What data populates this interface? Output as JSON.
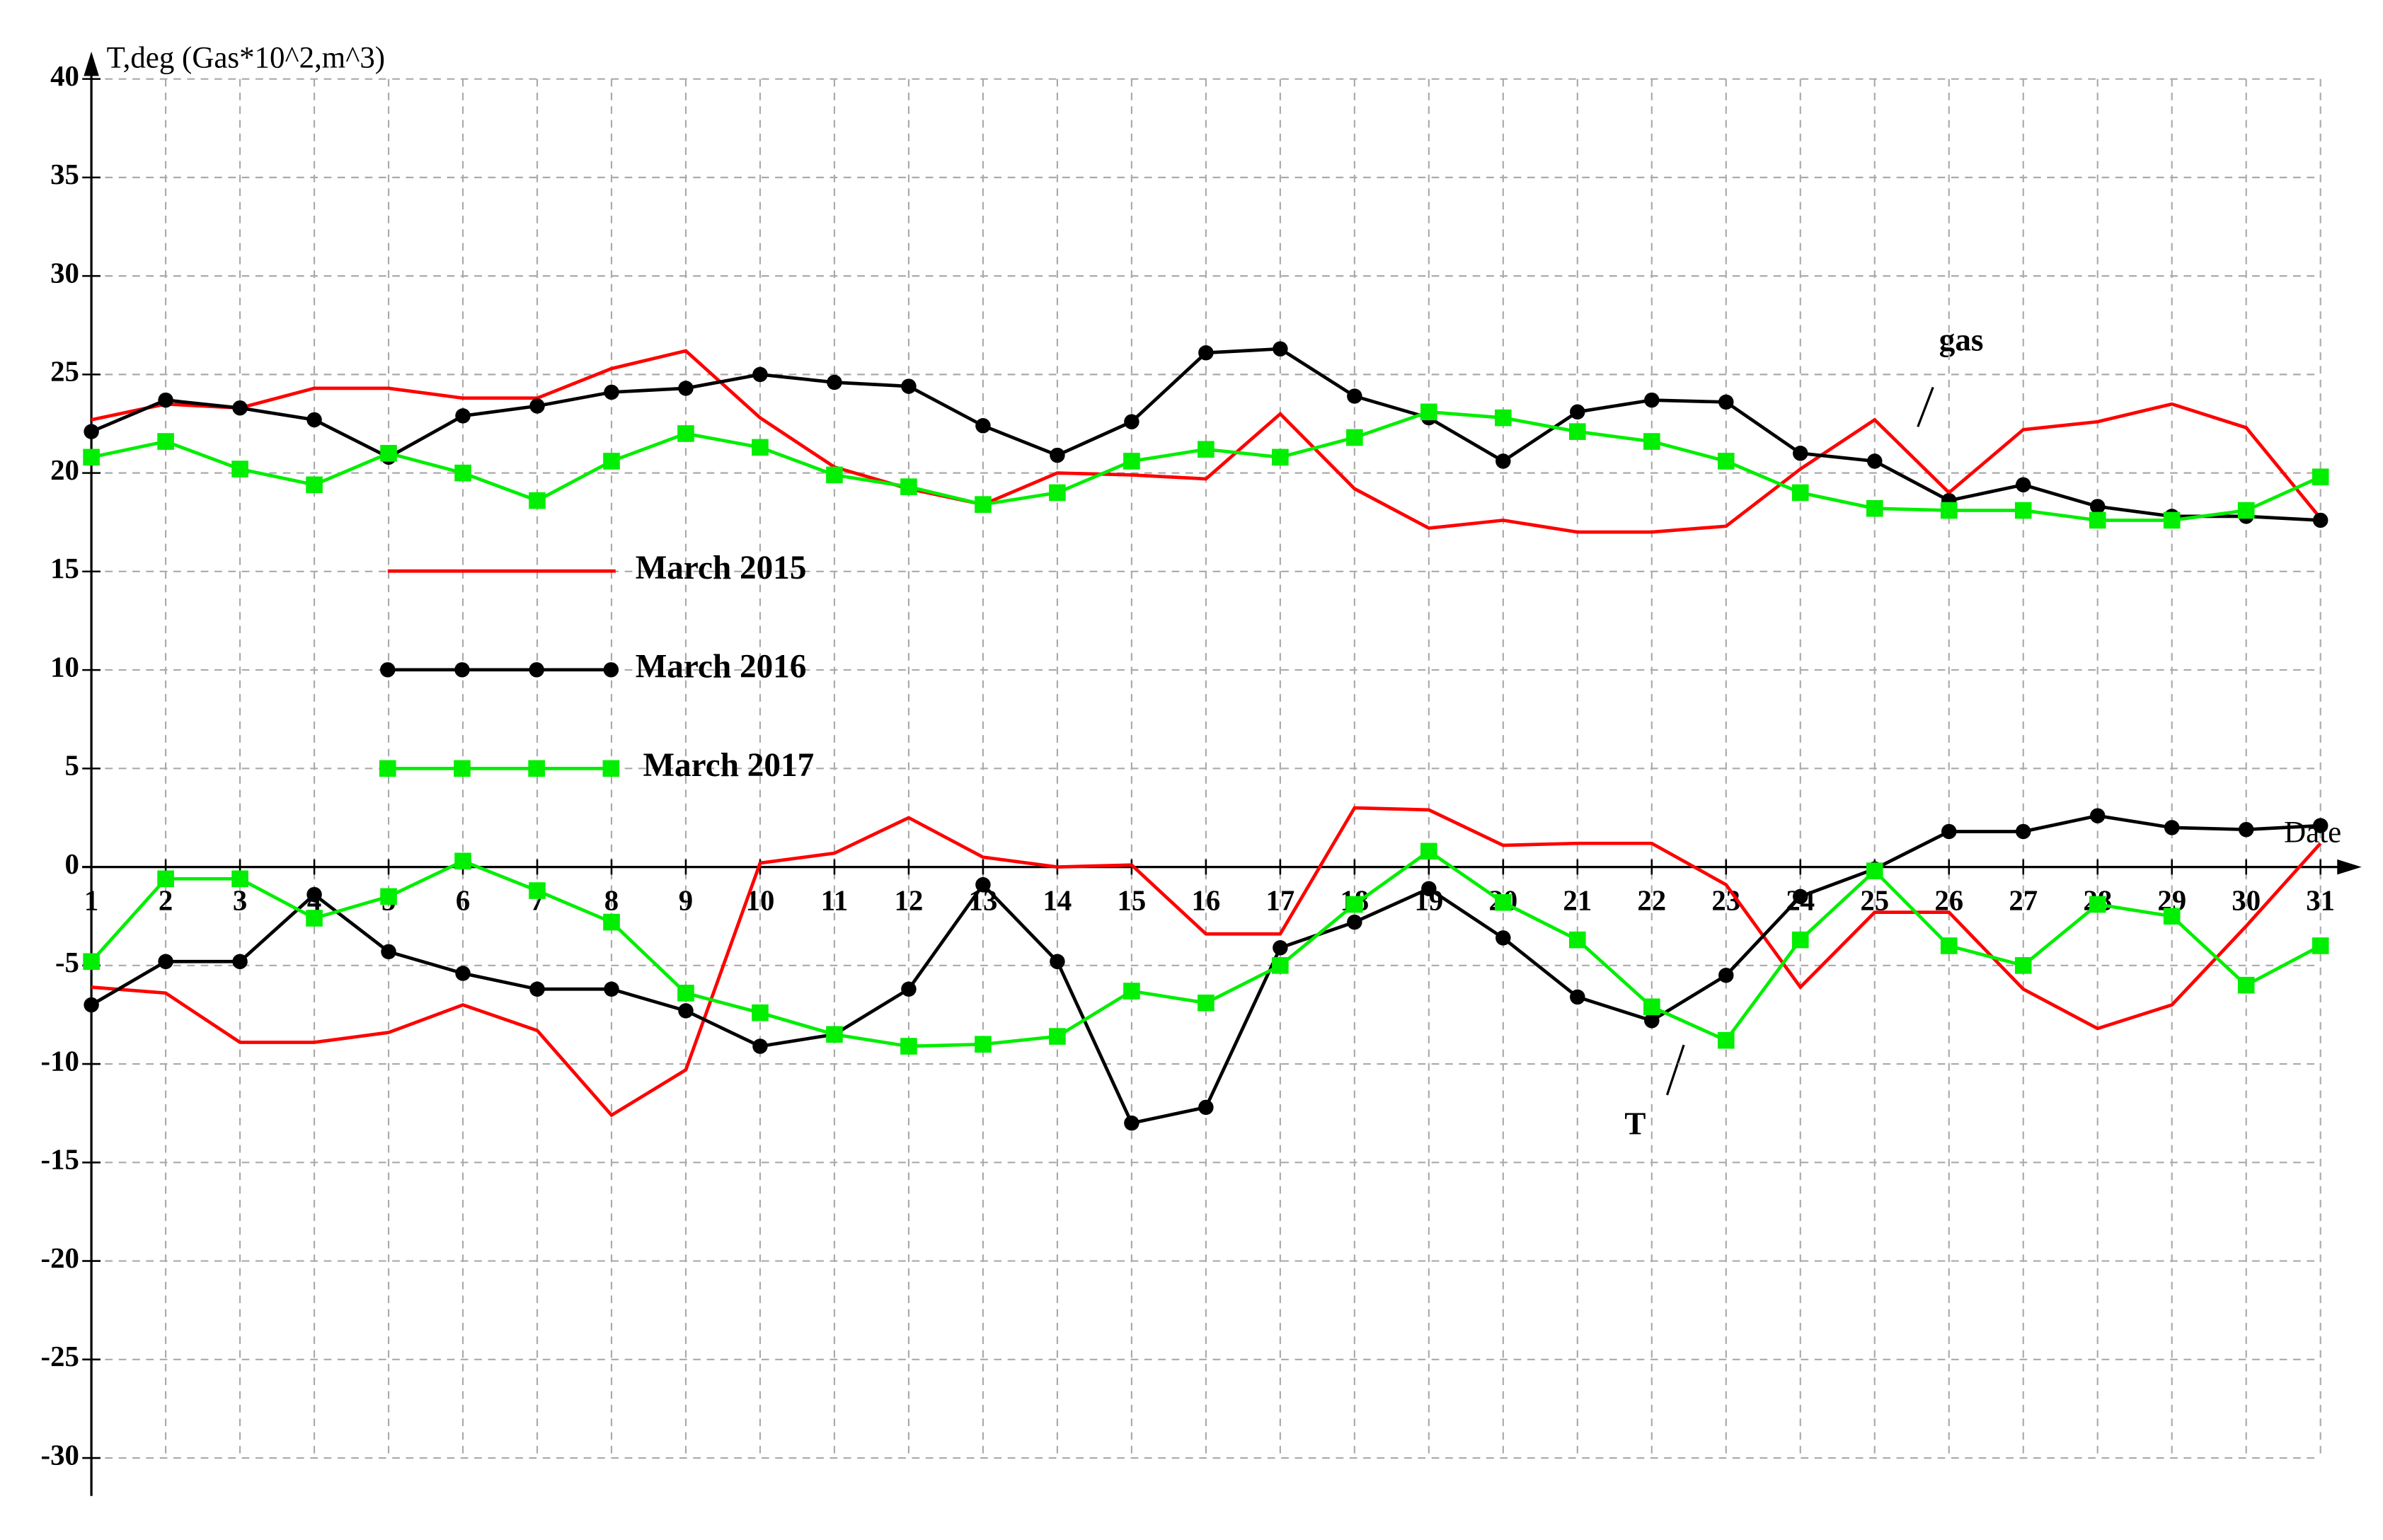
{
  "chart_data": {
    "type": "line",
    "y_label": "T,deg (Gas*10^2,m^3)",
    "x_label": "Date",
    "annotations": [
      "gas",
      "T"
    ],
    "x": [
      1,
      2,
      3,
      4,
      5,
      6,
      7,
      8,
      9,
      10,
      11,
      12,
      13,
      14,
      15,
      16,
      17,
      18,
      19,
      20,
      21,
      22,
      23,
      24,
      25,
      26,
      27,
      28,
      29,
      30,
      31
    ],
    "xlim": [
      1,
      31
    ],
    "xticks": [
      1,
      2,
      3,
      4,
      5,
      6,
      7,
      8,
      9,
      10,
      11,
      12,
      13,
      14,
      15,
      16,
      17,
      18,
      19,
      20,
      21,
      22,
      23,
      24,
      25,
      26,
      27,
      28,
      29,
      30,
      31
    ],
    "ylim": [
      -30,
      40
    ],
    "yticks": [
      -30,
      -25,
      -20,
      -15,
      -10,
      -5,
      0,
      5,
      10,
      15,
      20,
      25,
      30,
      35,
      40
    ],
    "grid": true,
    "legend": "left",
    "series": [
      {
        "name": "March 2015",
        "color": "#ff0000",
        "marker": "none",
        "gas": [
          22.7,
          23.5,
          23.3,
          24.3,
          24.3,
          23.8,
          23.8,
          25.3,
          26.2,
          22.8,
          20.3,
          19.2,
          18.4,
          20.0,
          19.9,
          19.7,
          23.0,
          19.2,
          17.2,
          17.6,
          17.0,
          17.0,
          17.3,
          20.2,
          22.7,
          19.0,
          22.2,
          22.6,
          23.5,
          22.3,
          17.7
        ],
        "temperature": [
          -6.1,
          -6.4,
          -8.9,
          -8.9,
          -8.4,
          -7.0,
          -8.3,
          -12.6,
          -10.3,
          0.2,
          0.7,
          2.5,
          0.5,
          0.0,
          0.1,
          -3.4,
          -3.4,
          3.0,
          2.9,
          1.1,
          1.2,
          1.2,
          -0.9,
          -6.1,
          -2.3,
          -2.3,
          -6.2,
          -8.2,
          -7.0,
          -3.0,
          1.2
        ]
      },
      {
        "name": "March 2016",
        "color": "#000000",
        "marker": "circle",
        "gas": [
          22.1,
          23.7,
          23.3,
          22.7,
          20.8,
          22.9,
          23.4,
          24.1,
          24.3,
          25.0,
          24.6,
          24.4,
          22.4,
          20.9,
          22.6,
          26.1,
          26.3,
          23.9,
          22.8,
          20.6,
          23.1,
          23.7,
          23.6,
          21.0,
          20.6,
          18.6,
          19.4,
          18.3,
          17.8,
          17.8,
          17.6
        ],
        "temperature": [
          -7.0,
          -4.8,
          -4.8,
          -1.4,
          -4.3,
          -5.4,
          -6.2,
          -6.2,
          -7.3,
          -9.1,
          -8.5,
          -6.2,
          -0.9,
          -4.8,
          -13.0,
          -12.2,
          -4.1,
          -2.8,
          -1.1,
          -3.6,
          -6.6,
          -7.8,
          -5.5,
          -1.5,
          -0.1,
          1.8,
          1.8,
          2.6,
          2.0,
          1.9,
          2.1
        ]
      },
      {
        "name": "March 2017",
        "color": "#00ee00",
        "marker": "square",
        "gas": [
          20.8,
          21.6,
          20.2,
          19.4,
          21.0,
          20.0,
          18.6,
          20.6,
          22.0,
          21.3,
          19.9,
          19.3,
          18.4,
          19.0,
          20.6,
          21.2,
          20.8,
          21.8,
          23.1,
          22.8,
          22.1,
          21.6,
          20.6,
          19.0,
          18.2,
          18.1,
          18.1,
          17.6,
          17.6,
          18.1,
          19.8
        ],
        "temperature": [
          -4.8,
          -0.6,
          -0.6,
          -2.6,
          -1.5,
          0.3,
          -1.2,
          -2.8,
          -6.4,
          -7.4,
          -8.5,
          -9.1,
          -9.0,
          -8.6,
          -6.3,
          -6.9,
          -5.0,
          -1.9,
          0.8,
          -1.8,
          -3.7,
          -7.1,
          -8.8,
          -3.7,
          -0.2,
          -4.0,
          -5.0,
          -1.9,
          -2.5,
          -6.0,
          -4.0
        ]
      }
    ]
  }
}
